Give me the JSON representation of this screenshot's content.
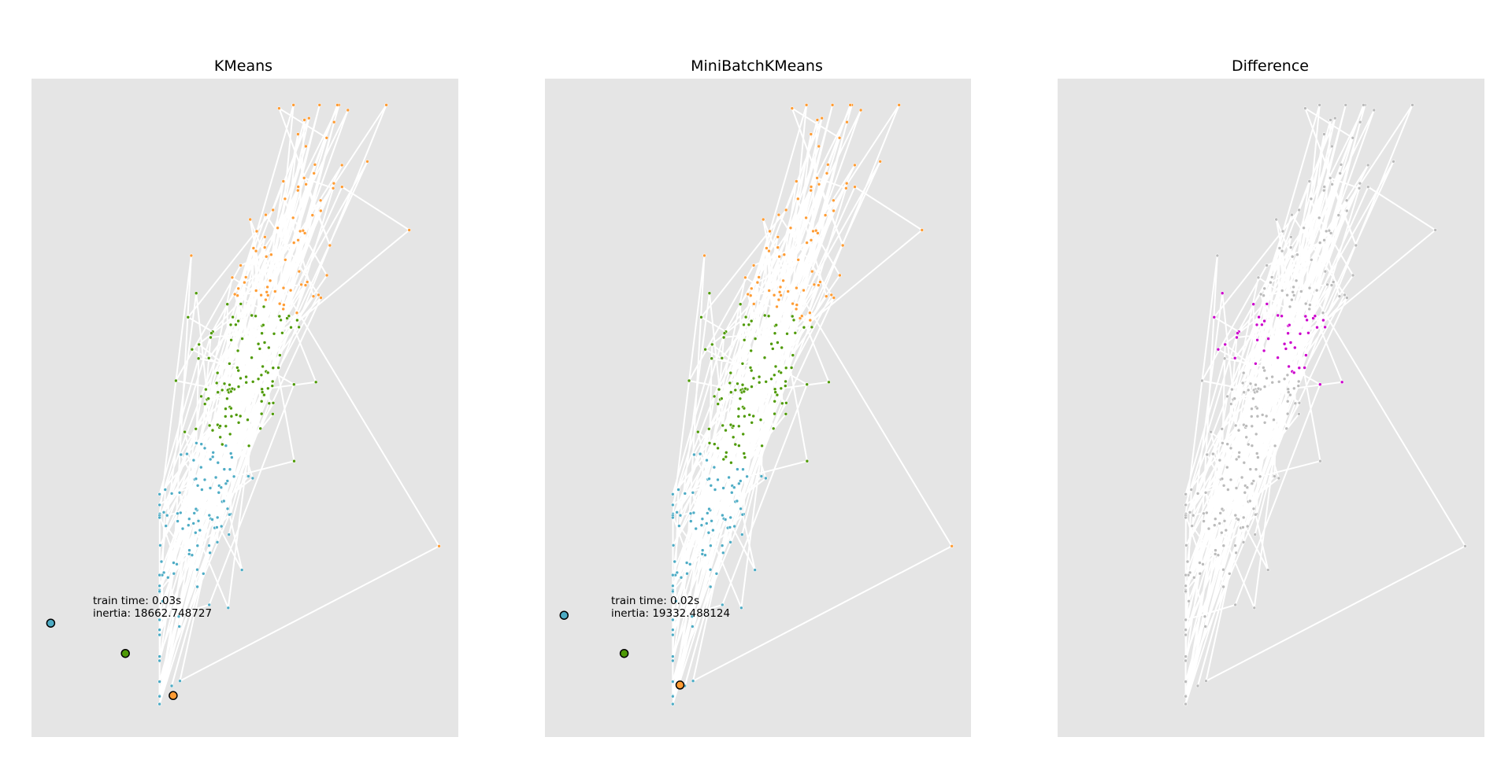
{
  "figure": {
    "background": "#ffffff",
    "axes_background": "#e5e5e5",
    "line_color": "#ffffff"
  },
  "chart_data": [
    {
      "type": "scatter",
      "title": "KMeans",
      "xticks": false,
      "yticks": false,
      "info_lines": [
        "train time: 0.03s",
        "inertia: 18662.748727"
      ],
      "cluster_colors": [
        "#4EACC5",
        "#4E9A06",
        "#FF9C34"
      ],
      "point_counts": [
        110,
        110,
        80
      ],
      "centers": [
        {
          "x": 0.045,
          "y": 0.173
        },
        {
          "x": 0.22,
          "y": 0.127
        },
        {
          "x": 0.332,
          "y": 0.063
        }
      ]
    },
    {
      "type": "scatter",
      "title": "MiniBatchKMeans",
      "xticks": false,
      "yticks": false,
      "info_lines": [
        "train time: 0.02s",
        "inertia: 19332.488124"
      ],
      "cluster_colors": [
        "#4EACC5",
        "#4E9A06",
        "#FF9C34"
      ],
      "point_counts": [
        100,
        115,
        85
      ],
      "centers": [
        {
          "x": 0.045,
          "y": 0.185
        },
        {
          "x": 0.186,
          "y": 0.127
        },
        {
          "x": 0.317,
          "y": 0.079
        }
      ]
    },
    {
      "type": "scatter",
      "title": "Difference",
      "xticks": false,
      "yticks": false,
      "same_color": "#bbbbbb",
      "diff_color": "#cc00cc",
      "point_counts": [
        255,
        45
      ]
    }
  ]
}
